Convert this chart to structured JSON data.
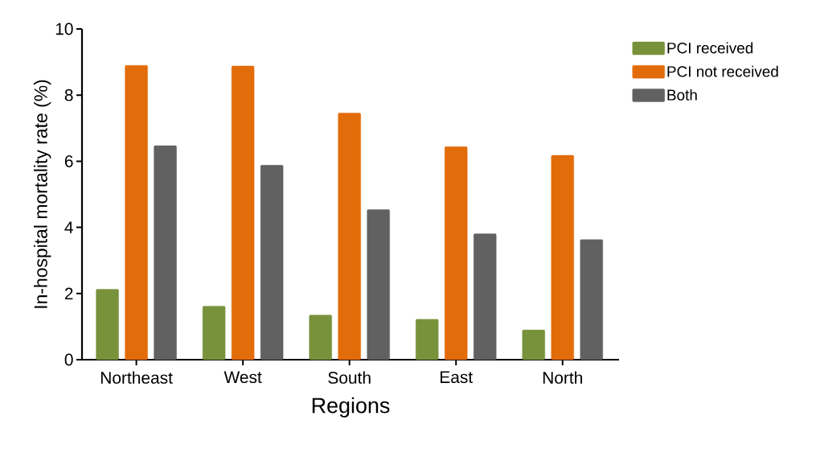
{
  "chart_data": {
    "type": "bar",
    "xlabel": "Regions",
    "ylabel": "In-hospital mortality rate (%)",
    "categories": [
      "Northeast",
      "West",
      "South",
      "East",
      "North"
    ],
    "series": [
      {
        "name": "PCI received",
        "color": "#78923c",
        "values": [
          2.13,
          1.62,
          1.35,
          1.22,
          0.9
        ]
      },
      {
        "name": "PCI not received",
        "color": "#e36c0a",
        "values": [
          8.9,
          8.88,
          7.46,
          6.44,
          6.18
        ]
      },
      {
        "name": "Both",
        "color": "#616161",
        "values": [
          6.47,
          5.88,
          4.54,
          3.81,
          3.63
        ]
      }
    ],
    "ylim": [
      0,
      10
    ],
    "yticks": [
      0,
      2,
      4,
      6,
      8,
      10
    ],
    "grid": false,
    "legend": "top right"
  }
}
